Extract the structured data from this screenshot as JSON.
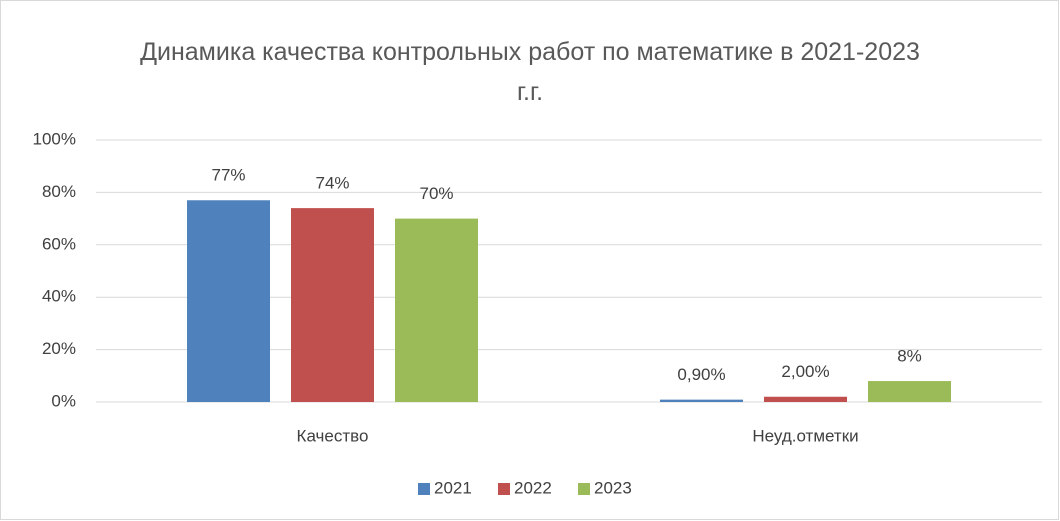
{
  "chart_data": {
    "type": "bar",
    "title": "Динамика качества контрольных работ по математике в 2021-2023 г.г.",
    "categories": [
      "Качество",
      "Неуд.отметки"
    ],
    "series": [
      {
        "name": "2021",
        "color": "#4f81bd",
        "values": [
          77,
          0.9
        ],
        "value_labels": [
          "77%",
          "0,90%"
        ]
      },
      {
        "name": "2022",
        "color": "#c0504d",
        "values": [
          74,
          2
        ],
        "value_labels": [
          "74%",
          "2,00%"
        ]
      },
      {
        "name": "2023",
        "color": "#9bbb59",
        "values": [
          70,
          8
        ],
        "value_labels": [
          "70%",
          "8%"
        ]
      }
    ],
    "ylim": [
      0,
      100
    ],
    "yticks": [
      {
        "value": 0,
        "label": "0%"
      },
      {
        "value": 20,
        "label": "20%"
      },
      {
        "value": 40,
        "label": "40%"
      },
      {
        "value": 60,
        "label": "60%"
      },
      {
        "value": 80,
        "label": "80%"
      },
      {
        "value": 100,
        "label": "100%"
      }
    ],
    "grid": true,
    "legend": "bottom"
  }
}
